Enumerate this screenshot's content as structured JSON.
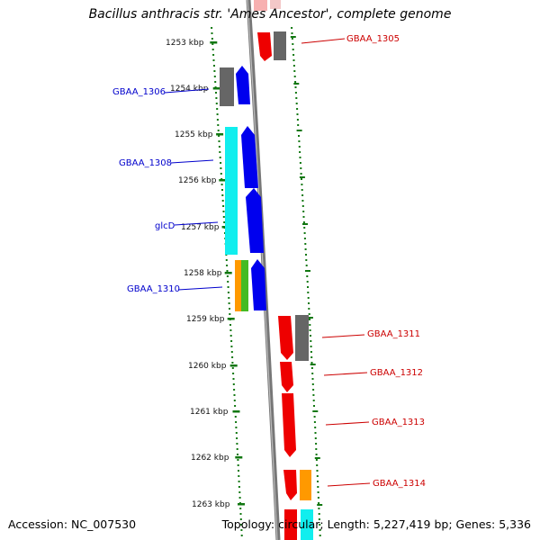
{
  "title": "Bacillus anthracis str. 'Ames Ancestor', complete genome",
  "footer": {
    "accession": "Accession: NC_007530",
    "topology": "Topology: circular; Length: 5,227,419 bp; Genes: 5,336"
  },
  "colors": {
    "forward_label": "#cc0000",
    "reverse_label": "#0000cc",
    "tick": "#117711",
    "backbone": "#777777"
  },
  "chart_data": {
    "type": "diagram",
    "ticks": [
      "1253 kbp",
      "1254 kbp",
      "1255 kbp",
      "1256 kbp",
      "1257 kbp",
      "1258 kbp",
      "1259 kbp",
      "1260 kbp",
      "1261 kbp",
      "1262 kbp",
      "1263 kbp"
    ],
    "genes": [
      {
        "label": "GBAA_1305",
        "strand": "forward"
      },
      {
        "label": "GBAA_1306",
        "strand": "reverse"
      },
      {
        "label": "GBAA_1308",
        "strand": "reverse"
      },
      {
        "label": "glcD",
        "strand": "reverse"
      },
      {
        "label": "GBAA_1310",
        "strand": "reverse"
      },
      {
        "label": "GBAA_1311",
        "strand": "forward"
      },
      {
        "label": "GBAA_1312",
        "strand": "forward"
      },
      {
        "label": "GBAA_1313",
        "strand": "forward"
      },
      {
        "label": "GBAA_1314",
        "strand": "forward"
      }
    ]
  }
}
